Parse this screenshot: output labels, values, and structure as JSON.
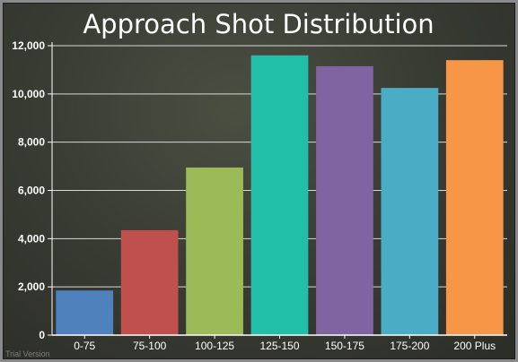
{
  "chart_data": {
    "type": "bar",
    "title": "Approach Shot Distribution",
    "xlabel": "",
    "ylabel": "",
    "categories": [
      "0-75",
      "75-100",
      "100-125",
      "125-150",
      "150-175",
      "175-200",
      "200 Plus"
    ],
    "values": [
      1850,
      4350,
      6950,
      11600,
      11150,
      10250,
      11400
    ],
    "colors": [
      "#4f81bd",
      "#c0504d",
      "#9bbb59",
      "#21bfa7",
      "#8064a2",
      "#4bacc6",
      "#f79646"
    ],
    "ylim": [
      0,
      12000
    ],
    "yticks": [
      0,
      2000,
      4000,
      6000,
      8000,
      10000,
      12000
    ],
    "ytick_labels": [
      "0",
      "2,000",
      "4,000",
      "6,000",
      "8,000",
      "10,000",
      "12,000"
    ],
    "grid": true,
    "legend": "none"
  },
  "watermark": "Trial Version"
}
